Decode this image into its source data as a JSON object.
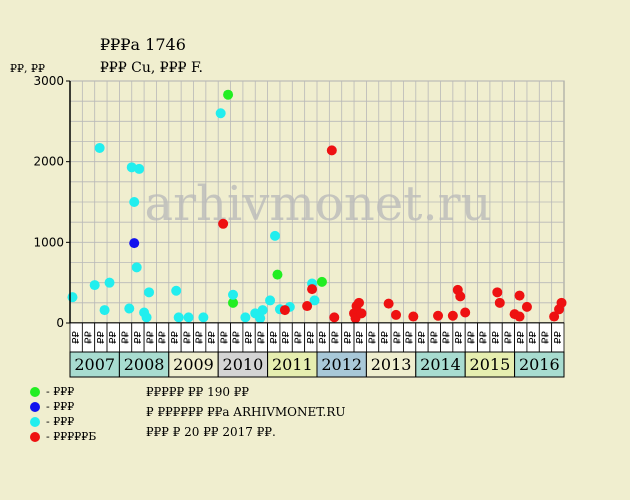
{
  "header": {
    "line1": "₽₽₽а 1746",
    "line2": "₽₽₽ Cu, ₽₽₽ F.",
    "y_unit": "₽₽, ₽₽"
  },
  "watermark": "arhivmonet.ru",
  "legend": [
    {
      "label": "- ₽₽₽",
      "color": "#22ee22"
    },
    {
      "label": "- ₽₽₽",
      "color": "#1111ee"
    },
    {
      "label": "- ₽₽₽",
      "color": "#22eeee"
    },
    {
      "label": "- ₽₽₽₽₽Б",
      "color": "#ee1111"
    }
  ],
  "info": [
    "₽₽₽₽₽ ₽₽ 190 ₽₽",
    "₽ ₽₽₽₽₽₽ ₽₽а ARHIVMONET.RU",
    "₽₽₽ ₽ 20 ₽₽ 2017 ₽₽."
  ],
  "chart_data": {
    "type": "scatter",
    "ylim": [
      0,
      3000
    ],
    "yticks": [
      0,
      1000,
      2000,
      3000
    ],
    "grid": true,
    "x_axis": {
      "quarter_labels": [
        "₽₽",
        "₽₽",
        "₽₽",
        "₽₽"
      ],
      "years": [
        {
          "label": "2007",
          "color": "#a8dcd0"
        },
        {
          "label": "2008",
          "color": "#a8dcd0"
        },
        {
          "label": "2009",
          "color": "#efeecf"
        },
        {
          "label": "2010",
          "color": "#d4d4d4"
        },
        {
          "label": "2011",
          "color": "#e6eeb0"
        },
        {
          "label": "2012",
          "color": "#a8c8d8"
        },
        {
          "label": "2013",
          "color": "#efeecf"
        },
        {
          "label": "2014",
          "color": "#a8dcd0"
        },
        {
          "label": "2015",
          "color": "#e6eeb0"
        },
        {
          "label": "2016",
          "color": "#a8dcd0"
        }
      ]
    },
    "series": [
      {
        "color": "#22ee22",
        "points": [
          [
            2010.2,
            2830
          ],
          [
            2010.3,
            250
          ],
          [
            2011.2,
            600
          ],
          [
            2012.1,
            510
          ]
        ]
      },
      {
        "color": "#1111ee",
        "points": [
          [
            2008.3,
            990
          ]
        ]
      },
      {
        "color": "#22eeee",
        "points": [
          [
            2007.05,
            320
          ],
          [
            2007.5,
            470
          ],
          [
            2007.6,
            2170
          ],
          [
            2007.7,
            160
          ],
          [
            2007.8,
            500
          ],
          [
            2008.2,
            180
          ],
          [
            2008.25,
            1930
          ],
          [
            2008.3,
            1500
          ],
          [
            2008.4,
            1910
          ],
          [
            2008.35,
            690
          ],
          [
            2008.5,
            130
          ],
          [
            2008.55,
            70
          ],
          [
            2008.6,
            380
          ],
          [
            2009.15,
            400
          ],
          [
            2009.2,
            70
          ],
          [
            2009.4,
            70
          ],
          [
            2009.7,
            70
          ],
          [
            2010.05,
            2600
          ],
          [
            2010.3,
            350
          ],
          [
            2010.55,
            70
          ],
          [
            2010.75,
            120
          ],
          [
            2010.85,
            60
          ],
          [
            2010.9,
            160
          ],
          [
            2011.05,
            280
          ],
          [
            2011.15,
            1080
          ],
          [
            2011.25,
            170
          ],
          [
            2011.45,
            200
          ],
          [
            2011.9,
            490
          ],
          [
            2011.95,
            280
          ]
        ]
      },
      {
        "color": "#ee1111",
        "points": [
          [
            2010.1,
            1230
          ],
          [
            2011.35,
            160
          ],
          [
            2011.9,
            420
          ],
          [
            2011.8,
            210
          ],
          [
            2012.3,
            2140
          ],
          [
            2012.35,
            70
          ],
          [
            2012.75,
            120
          ],
          [
            2012.78,
            60
          ],
          [
            2012.8,
            210
          ],
          [
            2012.85,
            250
          ],
          [
            2012.9,
            120
          ],
          [
            2013.45,
            240
          ],
          [
            2013.6,
            100
          ],
          [
            2013.95,
            80
          ],
          [
            2014.45,
            90
          ],
          [
            2014.75,
            90
          ],
          [
            2014.85,
            410
          ],
          [
            2014.9,
            330
          ],
          [
            2015.0,
            130
          ],
          [
            2015.65,
            380
          ],
          [
            2015.7,
            250
          ],
          [
            2016.0,
            110
          ],
          [
            2016.1,
            80
          ],
          [
            2016.1,
            340
          ],
          [
            2016.25,
            200
          ],
          [
            2016.8,
            80
          ],
          [
            2016.9,
            170
          ],
          [
            2016.95,
            250
          ]
        ]
      }
    ]
  }
}
